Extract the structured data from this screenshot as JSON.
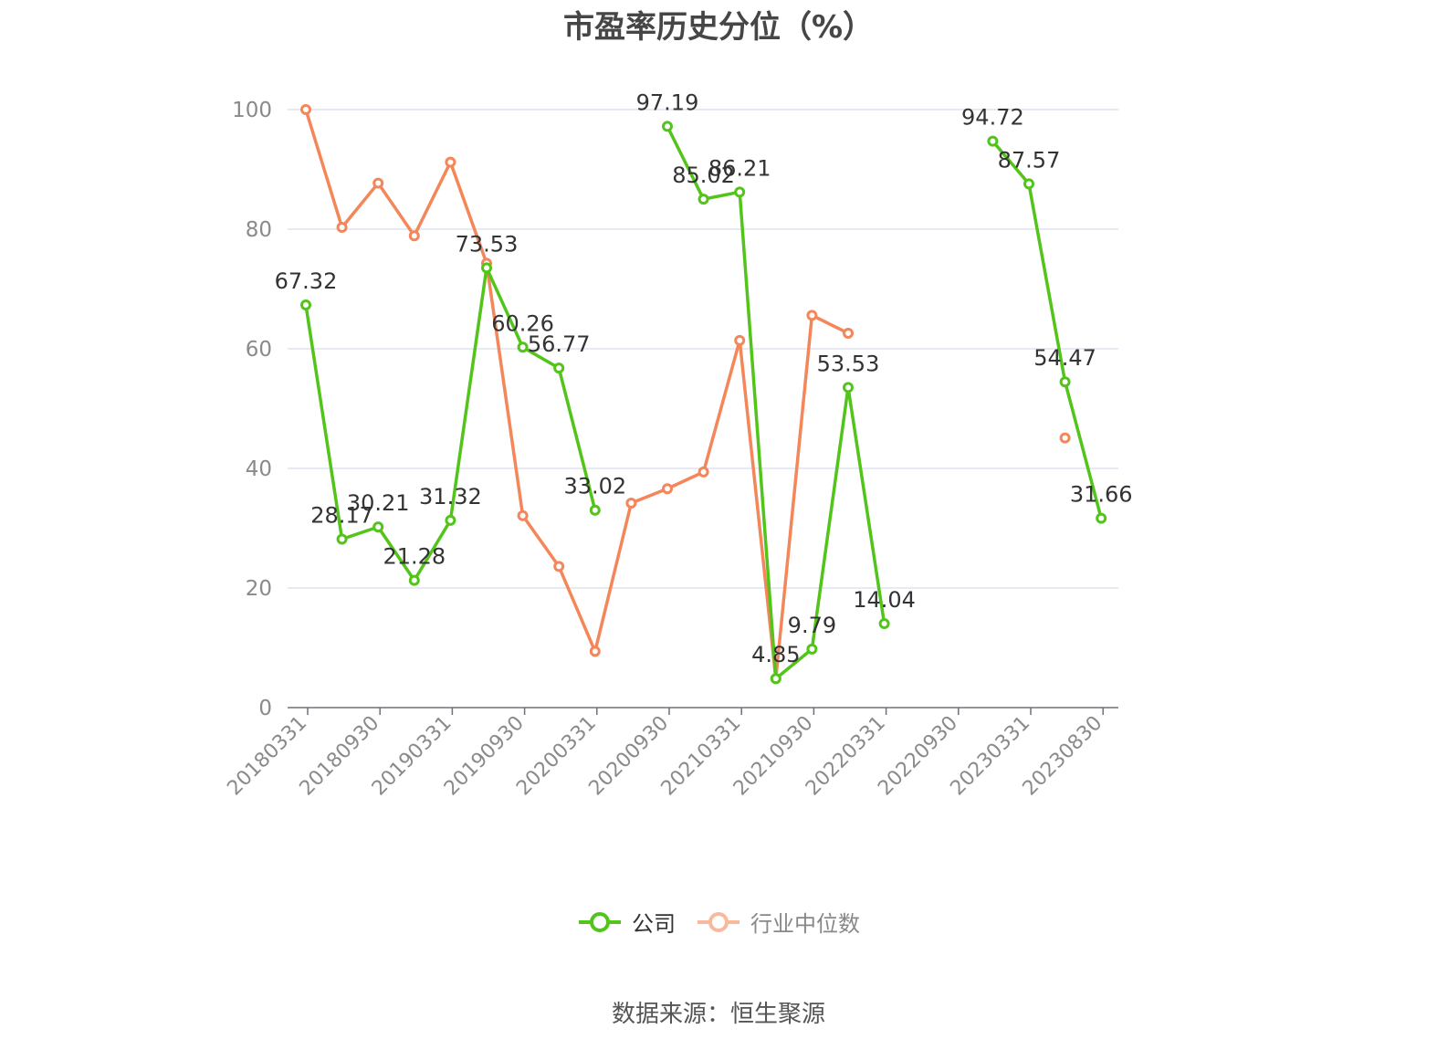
{
  "title": "市盈率历史分位（%）",
  "source": "数据来源：恒生聚源",
  "legend": {
    "company": "公司",
    "industry": "行业中位数"
  },
  "colors": {
    "company": "#52c41a",
    "industry": "#f4865a",
    "grid": "#dfe4ee",
    "axis": "#6e7079",
    "tick_text": "#8a8a8a"
  },
  "chart_data": {
    "type": "line",
    "ylim": [
      0,
      100
    ],
    "yticks": [
      0,
      20,
      40,
      60,
      80,
      100
    ],
    "grid": true,
    "legend_position": "bottom",
    "x": [
      "20180331",
      "20180630",
      "20180930",
      "20181231",
      "20190331",
      "20190630",
      "20190930",
      "20191231",
      "20200331",
      "20200630",
      "20200930",
      "20201231",
      "20210331",
      "20210630",
      "20210930",
      "20211231",
      "20220331",
      "20220630",
      "20220930",
      "20221231",
      "20230331",
      "20230630",
      "20230830"
    ],
    "x_tick_labels": [
      "20180331",
      "20180930",
      "20190331",
      "20190930",
      "20200331",
      "20200930",
      "20210331",
      "20210930",
      "20220331",
      "20220930",
      "20230331",
      "20230830"
    ],
    "series": [
      {
        "name": "公司",
        "key": "company",
        "show_labels": true,
        "values": [
          67.32,
          28.17,
          30.21,
          21.28,
          31.32,
          73.53,
          60.26,
          56.77,
          33.02,
          null,
          97.19,
          85.02,
          86.21,
          4.85,
          9.79,
          53.53,
          14.04,
          null,
          null,
          94.72,
          87.57,
          54.47,
          31.66
        ],
        "labels": [
          "67.32",
          "28.17",
          "30.21",
          "21.28",
          "31.32",
          "73.53",
          "60.26",
          "56.77",
          "33.02",
          null,
          "97.19",
          "85.02",
          "86.21",
          "4.85",
          "9.79",
          "53.53",
          "14.04",
          null,
          null,
          "94.72",
          "87.57",
          "54.47",
          "31.66"
        ]
      },
      {
        "name": "行业中位数",
        "key": "industry",
        "show_labels": false,
        "values": [
          100,
          80.3,
          87.7,
          78.9,
          91.2,
          74.3,
          32.1,
          23.6,
          9.4,
          34.2,
          36.6,
          39.4,
          61.4,
          4.85,
          65.6,
          62.6,
          null,
          null,
          null,
          null,
          null,
          45.1,
          null
        ]
      }
    ]
  }
}
